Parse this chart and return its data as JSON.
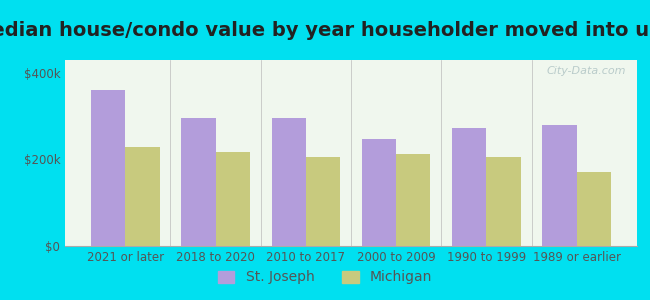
{
  "title": "Median house/condo value by year householder moved into unit",
  "categories": [
    "2021 or later",
    "2018 to 2020",
    "2010 to 2017",
    "2000 to 2009",
    "1990 to 1999",
    "1989 or earlier"
  ],
  "st_joseph": [
    360000,
    295000,
    295000,
    248000,
    272000,
    280000
  ],
  "michigan": [
    228000,
    218000,
    205000,
    213000,
    205000,
    172000
  ],
  "st_joseph_color": "#b39ddb",
  "michigan_color": "#c8ca7e",
  "background_outer": "#00e0f0",
  "background_inner": "#f0f7ee",
  "ylabel_ticks": [
    "$0",
    "$200k",
    "$400k"
  ],
  "ytick_vals": [
    0,
    200000,
    400000
  ],
  "bar_width": 0.38,
  "title_fontsize": 14,
  "tick_fontsize": 8.5,
  "legend_fontsize": 10,
  "watermark": "City-Data.com",
  "ylim": [
    0,
    430000
  ]
}
